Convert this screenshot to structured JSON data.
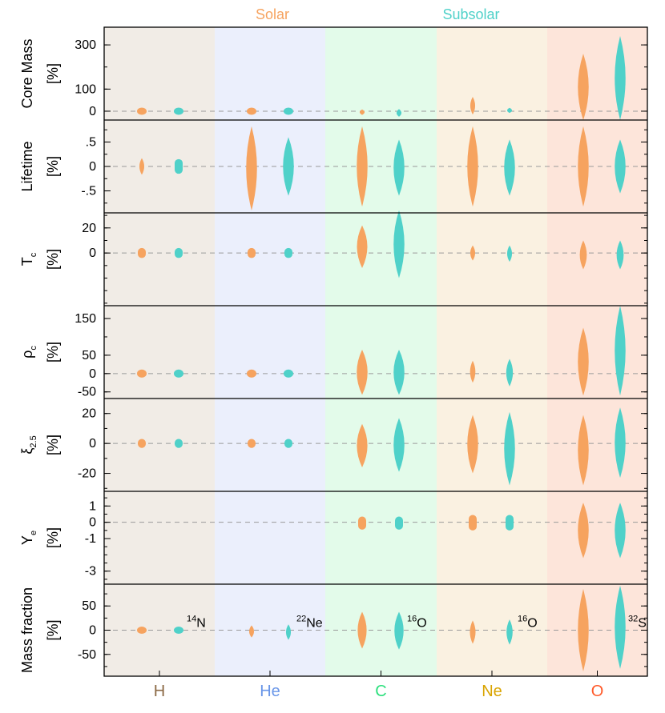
{
  "legend": {
    "solar": {
      "label": "Solar",
      "color": "#f6a35f"
    },
    "subsolar": {
      "label": "Subsolar",
      "color": "#4fd1c9"
    }
  },
  "chart_data": {
    "type": "violin",
    "categories": [
      {
        "name": "H",
        "label_color": "#8c6a45",
        "bg": "#f1ece6"
      },
      {
        "name": "He",
        "label_color": "#6a96e8",
        "bg": "#ebeffc"
      },
      {
        "name": "C",
        "label_color": "#2ee07e",
        "bg": "#e3fbea"
      },
      {
        "name": "Ne",
        "label_color": "#d9a400",
        "bg": "#faf1e1"
      },
      {
        "name": "O",
        "label_color": "#ff5a2a",
        "bg": "#fde5da"
      }
    ],
    "panels": [
      {
        "ylabel_main": "Core Mass",
        "ylabel_sub": "",
        "unit": "[%]",
        "ylim": [
          -40,
          380
        ],
        "ticks": [
          {
            "v": 300,
            "label": "300"
          },
          {
            "v": 100,
            "label": "100"
          },
          {
            "v": 0,
            "label": "0"
          }
        ],
        "solar": [
          {
            "lo": -6,
            "hi": 6,
            "shape": "ellipse"
          },
          {
            "lo": -6,
            "hi": 6,
            "shape": "ellipse"
          },
          {
            "lo": -17,
            "hi": 8,
            "shape": "violin"
          },
          {
            "lo": -15,
            "hi": 65,
            "shape": "violin"
          },
          {
            "lo": -40,
            "hi": 260,
            "shape": "violin"
          }
        ],
        "subsolar": [
          {
            "lo": -6,
            "hi": 6,
            "shape": "ellipse"
          },
          {
            "lo": -6,
            "hi": 6,
            "shape": "ellipse"
          },
          {
            "lo": -25,
            "hi": 10,
            "shape": "violin"
          },
          {
            "lo": -8,
            "hi": 15,
            "shape": "violin"
          },
          {
            "lo": -40,
            "hi": 340,
            "shape": "violin"
          }
        ],
        "annotations": []
      },
      {
        "ylabel_main": "Lifetime",
        "ylabel_sub": "",
        "unit": "[%]",
        "ylim": [
          -0.95,
          0.95
        ],
        "ticks": [
          {
            "v": 0.5,
            "label": ".5"
          },
          {
            "v": 0,
            "label": "0"
          },
          {
            "v": -0.5,
            "label": "-.5"
          }
        ],
        "solar": [
          {
            "lo": -0.17,
            "hi": 0.17,
            "shape": "violin"
          },
          {
            "lo": -0.9,
            "hi": 0.82,
            "shape": "violin"
          },
          {
            "lo": -0.82,
            "hi": 0.82,
            "shape": "violin"
          },
          {
            "lo": -0.82,
            "hi": 0.82,
            "shape": "violin"
          },
          {
            "lo": -0.82,
            "hi": 0.82,
            "shape": "violin"
          }
        ],
        "subsolar": [
          {
            "lo": -0.15,
            "hi": 0.15,
            "shape": "blob"
          },
          {
            "lo": -0.6,
            "hi": 0.6,
            "shape": "violin"
          },
          {
            "lo": -0.6,
            "hi": 0.55,
            "shape": "violin"
          },
          {
            "lo": -0.6,
            "hi": 0.55,
            "shape": "violin"
          },
          {
            "lo": -0.55,
            "hi": 0.55,
            "shape": "violin"
          }
        ],
        "annotations": []
      },
      {
        "ylabel_main": "T",
        "ylabel_sub": "c",
        "unit": "[%]",
        "ylim": [
          -42,
          32
        ],
        "ticks": [
          {
            "v": 20,
            "label": "20"
          },
          {
            "v": 0,
            "label": "0"
          }
        ],
        "solar": [
          {
            "lo": -4,
            "hi": 4,
            "shape": "blob"
          },
          {
            "lo": -4,
            "hi": 4,
            "shape": "blob"
          },
          {
            "lo": -12,
            "hi": 22,
            "shape": "violin"
          },
          {
            "lo": -6,
            "hi": 6,
            "shape": "violin"
          },
          {
            "lo": -13,
            "hi": 10,
            "shape": "violin"
          }
        ],
        "subsolar": [
          {
            "lo": -4,
            "hi": 4,
            "shape": "blob"
          },
          {
            "lo": -4,
            "hi": 4,
            "shape": "blob"
          },
          {
            "lo": -20,
            "hi": 34,
            "shape": "violin"
          },
          {
            "lo": -7,
            "hi": 6,
            "shape": "violin"
          },
          {
            "lo": -13,
            "hi": 10,
            "shape": "violin"
          }
        ],
        "annotations": []
      },
      {
        "ylabel_main": "ρ",
        "ylabel_sub": "c",
        "unit": "[%]",
        "ylim": [
          -68,
          185
        ],
        "ticks": [
          {
            "v": 150,
            "label": "150"
          },
          {
            "v": 50,
            "label": "50"
          },
          {
            "v": 0,
            "label": "0"
          },
          {
            "v": -50,
            "label": "-50"
          }
        ],
        "solar": [
          {
            "lo": -11,
            "hi": 11,
            "shape": "ellipse"
          },
          {
            "lo": -11,
            "hi": 11,
            "shape": "ellipse"
          },
          {
            "lo": -58,
            "hi": 65,
            "shape": "violin"
          },
          {
            "lo": -25,
            "hi": 35,
            "shape": "violin"
          },
          {
            "lo": -60,
            "hi": 125,
            "shape": "violin"
          }
        ],
        "subsolar": [
          {
            "lo": -11,
            "hi": 11,
            "shape": "ellipse"
          },
          {
            "lo": -11,
            "hi": 11,
            "shape": "ellipse"
          },
          {
            "lo": -58,
            "hi": 65,
            "shape": "violin"
          },
          {
            "lo": -35,
            "hi": 40,
            "shape": "violin"
          },
          {
            "lo": -60,
            "hi": 185,
            "shape": "violin"
          }
        ],
        "annotations": []
      },
      {
        "ylabel_main": "ξ",
        "ylabel_sub": "2.5",
        "unit": "[%]",
        "ylim": [
          -32,
          30
        ],
        "ticks": [
          {
            "v": 20,
            "label": "20"
          },
          {
            "v": 0,
            "label": "0"
          },
          {
            "v": -20,
            "label": "-20"
          }
        ],
        "solar": [
          {
            "lo": -3,
            "hi": 3,
            "shape": "blob"
          },
          {
            "lo": -3,
            "hi": 3,
            "shape": "blob"
          },
          {
            "lo": -16,
            "hi": 13,
            "shape": "violin"
          },
          {
            "lo": -20,
            "hi": 19,
            "shape": "violin"
          },
          {
            "lo": -28,
            "hi": 19,
            "shape": "violin"
          }
        ],
        "subsolar": [
          {
            "lo": -3,
            "hi": 3,
            "shape": "blob"
          },
          {
            "lo": -3,
            "hi": 3,
            "shape": "blob"
          },
          {
            "lo": -19,
            "hi": 17,
            "shape": "violin"
          },
          {
            "lo": -28,
            "hi": 21,
            "shape": "violin"
          },
          {
            "lo": -23,
            "hi": 24,
            "shape": "violin"
          }
        ],
        "annotations": []
      },
      {
        "ylabel_main": "Y",
        "ylabel_sub": "e",
        "unit": "[%]",
        "ylim": [
          -3.8,
          1.9
        ],
        "ticks": [
          {
            "v": 1,
            "label": "1"
          },
          {
            "v": 0,
            "label": "0"
          },
          {
            "v": -1,
            "label": "-1"
          },
          {
            "v": -3,
            "label": "-3"
          }
        ],
        "solar": [
          null,
          null,
          {
            "lo": -0.45,
            "hi": 0.35,
            "shape": "blob"
          },
          {
            "lo": -0.5,
            "hi": 0.45,
            "shape": "blob"
          },
          {
            "lo": -2.2,
            "hi": 1.2,
            "shape": "violin"
          }
        ],
        "subsolar": [
          null,
          null,
          {
            "lo": -0.45,
            "hi": 0.35,
            "shape": "blob"
          },
          {
            "lo": -0.5,
            "hi": 0.45,
            "shape": "blob"
          },
          {
            "lo": -2.2,
            "hi": 1.2,
            "shape": "violin"
          }
        ],
        "annotations": []
      },
      {
        "ylabel_main": "Mass fraction",
        "ylabel_sub": "",
        "unit": "[%]",
        "ylim": [
          -95,
          95
        ],
        "ticks": [
          {
            "v": 50,
            "label": "50"
          },
          {
            "v": 0,
            "label": "0"
          },
          {
            "v": -50,
            "label": "-50"
          }
        ],
        "solar": [
          {
            "lo": -6,
            "hi": 6,
            "shape": "ellipse"
          },
          {
            "lo": -15,
            "hi": 10,
            "shape": "violin"
          },
          {
            "lo": -38,
            "hi": 38,
            "shape": "violin"
          },
          {
            "lo": -28,
            "hi": 20,
            "shape": "violin"
          },
          {
            "lo": -85,
            "hi": 85,
            "shape": "violin"
          }
        ],
        "subsolar": [
          {
            "lo": -6,
            "hi": 6,
            "shape": "ellipse"
          },
          {
            "lo": -20,
            "hi": 12,
            "shape": "violin"
          },
          {
            "lo": -40,
            "hi": 38,
            "shape": "violin"
          },
          {
            "lo": -30,
            "hi": 22,
            "shape": "violin"
          },
          {
            "lo": -80,
            "hi": 92,
            "shape": "violin"
          }
        ],
        "annotations": [
          {
            "cat": 0,
            "sup": "14",
            "base": "N"
          },
          {
            "cat": 1,
            "sup": "22",
            "base": "Ne"
          },
          {
            "cat": 2,
            "sup": "16",
            "base": "O"
          },
          {
            "cat": 3,
            "sup": "16",
            "base": "O"
          },
          {
            "cat": 4,
            "sup": "32",
            "base": "S"
          }
        ]
      }
    ]
  }
}
